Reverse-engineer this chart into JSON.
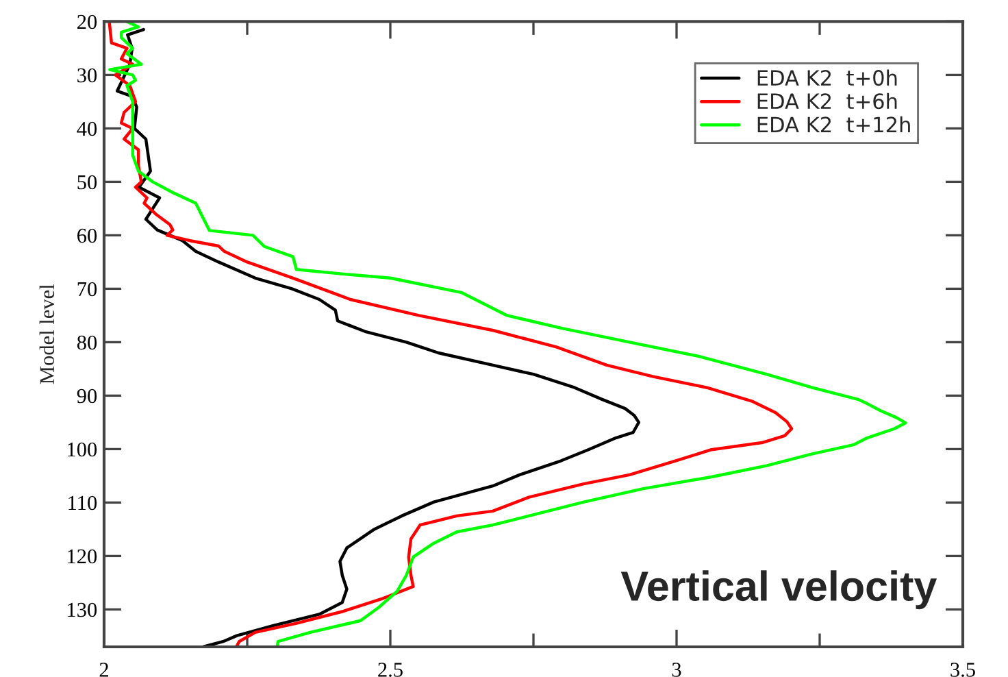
{
  "chart_data": {
    "type": "line",
    "ylabel": "Model level",
    "xlim": [
      2,
      3.5
    ],
    "xticks": [
      2,
      2.5,
      3,
      3.5
    ],
    "ylim": [
      137,
      20
    ],
    "yticks": [
      20,
      30,
      40,
      50,
      60,
      70,
      80,
      90,
      100,
      110,
      120,
      130
    ],
    "grid": false,
    "legend": "top right",
    "marker": "none",
    "line_style": "solid",
    "annotations": [
      "Vertical velocity"
    ],
    "series": [
      {
        "name": "EDA K2  t+0h",
        "color": "#000000",
        "x": [
          2.069,
          2.041,
          2.049,
          2.045,
          2.023,
          2.049,
          2.057,
          2.053,
          2.073,
          2.077,
          2.081,
          2.061,
          2.097,
          2.085,
          2.073,
          2.093,
          2.137,
          2.16,
          2.2,
          2.264,
          2.328,
          2.376,
          2.404,
          2.408,
          2.456,
          2.528,
          2.584,
          2.679,
          2.75,
          2.822,
          2.87,
          2.91,
          2.926,
          2.934,
          2.924,
          2.894,
          2.846,
          2.798,
          2.726,
          2.679,
          2.576,
          2.52,
          2.472,
          2.424,
          2.412,
          2.416,
          2.424,
          2.416,
          2.376,
          2.296,
          2.232,
          2.208,
          2.173
        ],
        "values": [
          21.5,
          22.5,
          25,
          28,
          33,
          34,
          36,
          40,
          42,
          45,
          48,
          51,
          53,
          55,
          57,
          59,
          61,
          63,
          65,
          68,
          70,
          72,
          74,
          76,
          78,
          80,
          82,
          84.3,
          86,
          88.5,
          90.7,
          92.4,
          93.7,
          95,
          96.9,
          97.9,
          100.1,
          102.2,
          104.8,
          106.9,
          109.9,
          112.5,
          115,
          118.5,
          121,
          123.6,
          126.2,
          128.7,
          130.9,
          133,
          134.9,
          136,
          137
        ]
      },
      {
        "name": "EDA K2  t+6h",
        "color": "#ff0000",
        "x": [
          2.009,
          2.013,
          2.04,
          2.03,
          2.05,
          2.02,
          2.045,
          2.055,
          2.035,
          2.03,
          2.05,
          2.035,
          2.06,
          2.06,
          2.065,
          2.055,
          2.075,
          2.07,
          2.09,
          2.115,
          2.12,
          2.11,
          2.15,
          2.2,
          2.21,
          2.25,
          2.33,
          2.38,
          2.43,
          2.55,
          2.68,
          2.79,
          2.878,
          2.958,
          3.053,
          3.133,
          3.173,
          3.193,
          3.201,
          3.189,
          3.149,
          3.061,
          2.998,
          2.918,
          2.838,
          2.742,
          2.679,
          2.616,
          2.552,
          2.536,
          2.532,
          2.536,
          2.54,
          2.488,
          2.416,
          2.336,
          2.264,
          2.236,
          2.231
        ],
        "values": [
          20,
          24,
          25,
          27,
          28,
          30,
          32,
          35,
          37,
          39,
          40,
          42,
          44,
          47,
          50,
          51,
          53,
          54,
          56,
          58,
          59,
          60,
          61,
          62,
          63,
          65,
          68,
          70,
          72,
          75,
          77.8,
          80.9,
          84.3,
          86.4,
          88.5,
          91.1,
          93.2,
          94.9,
          96.2,
          97.5,
          98.8,
          100.1,
          102.2,
          104.8,
          106.5,
          109,
          111.6,
          112.5,
          114.2,
          116.8,
          120.2,
          123.6,
          125.7,
          127.9,
          130.4,
          132.6,
          134.3,
          136,
          137
        ]
      },
      {
        "name": "EDA K2  t+12h",
        "color": "#00ff00",
        "x": [
          2.04,
          2.06,
          2.03,
          2.03,
          2.05,
          2.04,
          2.065,
          2.01,
          2.05,
          2.055,
          2.04,
          2.05,
          2.05,
          2.05,
          2.05,
          2.06,
          2.085,
          2.12,
          2.16,
          2.184,
          2.26,
          2.28,
          2.33,
          2.336,
          2.424,
          2.5,
          2.624,
          2.704,
          2.8,
          2.918,
          3.037,
          3.157,
          3.237,
          3.317,
          3.333,
          3.356,
          3.384,
          3.4,
          3.38,
          3.333,
          3.309,
          3.237,
          3.157,
          3.061,
          2.942,
          2.838,
          2.742,
          2.679,
          2.616,
          2.576,
          2.54,
          2.528,
          2.512,
          2.48,
          2.448,
          2.36,
          2.304,
          2.302
        ],
        "values": [
          20,
          21,
          22,
          23,
          25,
          26,
          28,
          29,
          30,
          31,
          32,
          35,
          38,
          40,
          45,
          48,
          50,
          52,
          54,
          59.1,
          60,
          62.1,
          64,
          66.4,
          67.3,
          68,
          70.7,
          75,
          77.4,
          80,
          82.6,
          86,
          88.5,
          90.7,
          91.5,
          92.8,
          94.1,
          95.1,
          96.2,
          97.9,
          99.2,
          100.9,
          103.1,
          105.2,
          107.4,
          109.9,
          112.5,
          114.2,
          115.5,
          117.6,
          120.2,
          123.6,
          126.6,
          129.6,
          132.1,
          134.3,
          136,
          137
        ]
      }
    ]
  }
}
